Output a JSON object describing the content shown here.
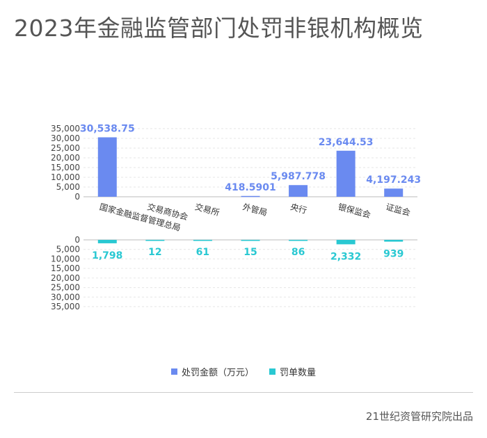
{
  "title": "2023年金融监管部门处罚非银机构概览",
  "source": "21世纪资管研究院出品",
  "chart_data": {
    "type": "bar",
    "categories": [
      "国家金融监督管理总局",
      "交易商协会",
      "交易所",
      "外管局",
      "央行",
      "银保监会",
      "证监会"
    ],
    "series": [
      {
        "name": "处罚金额（万元）",
        "color": "#6a8af0",
        "values": [
          30538.75,
          null,
          null,
          418.5901,
          5987.778,
          23644.53,
          4197.243
        ],
        "labels": [
          "30,538.75",
          "",
          "",
          "418.5901",
          "5,987.778",
          "23,644.53",
          "4,197.243"
        ]
      },
      {
        "name": "罚单数量",
        "color": "#29c8d2",
        "values": [
          1798,
          12,
          61,
          15,
          86,
          2332,
          939
        ],
        "labels": [
          "1,798",
          "12",
          "61",
          "15",
          "86",
          "2,332",
          "939"
        ]
      }
    ],
    "ylim": [
      0,
      35000
    ],
    "yticks": [
      0,
      5000,
      10000,
      15000,
      20000,
      25000,
      30000,
      35000
    ],
    "ytick_labels": [
      "0",
      "5,000",
      "10,000",
      "15,000",
      "20,000",
      "25,000",
      "30,000",
      "35,000"
    ],
    "legend": "bottom",
    "grid": true
  }
}
